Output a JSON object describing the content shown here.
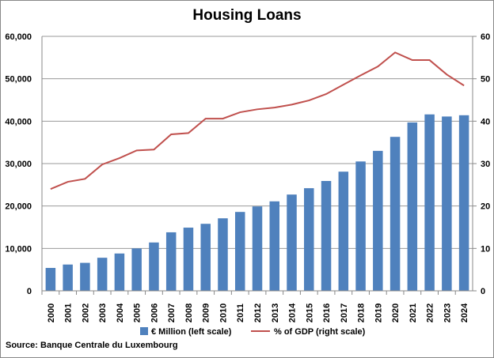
{
  "chart_data": {
    "type": "bar+line",
    "title": "Housing Loans",
    "source": "Source: Banque Centrale du Luxembourg",
    "categories": [
      "2000",
      "2001",
      "2002",
      "2003",
      "2004",
      "2005",
      "2006",
      "2007",
      "2008",
      "2009",
      "2010",
      "2011",
      "2012",
      "2013",
      "2014",
      "2015",
      "2016",
      "2017",
      "2018",
      "2019",
      "2020",
      "2021",
      "2022",
      "2023",
      "2024"
    ],
    "series": [
      {
        "name": "€ Million (left scale)",
        "type": "bar",
        "axis": "left",
        "color": "#4F81BD",
        "values": [
          5400,
          6200,
          6600,
          7800,
          8800,
          10000,
          11400,
          13800,
          14900,
          15800,
          17100,
          18600,
          19900,
          21100,
          22700,
          24200,
          25900,
          28100,
          30500,
          33000,
          36300,
          39700,
          41600,
          41100,
          41400
        ]
      },
      {
        "name": "% of GDP (right scale)",
        "type": "line",
        "axis": "right",
        "color": "#C0504D",
        "values": [
          24.0,
          25.7,
          26.4,
          29.8,
          31.3,
          33.1,
          33.3,
          36.9,
          37.2,
          40.6,
          40.6,
          42.1,
          42.8,
          43.2,
          43.9,
          44.9,
          46.4,
          48.6,
          50.8,
          52.9,
          56.2,
          54.4,
          54.4,
          51.0,
          48.4
        ]
      }
    ],
    "left_axis": {
      "ylim": [
        0,
        60000
      ],
      "ticks": [
        "0",
        "10,000",
        "20,000",
        "30,000",
        "40,000",
        "50,000",
        "60,000"
      ]
    },
    "right_axis": {
      "ylim": [
        0,
        60
      ],
      "ticks": [
        "0",
        "10",
        "20",
        "30",
        "40",
        "50",
        "60"
      ]
    },
    "grid": true,
    "legend": "bottom"
  }
}
